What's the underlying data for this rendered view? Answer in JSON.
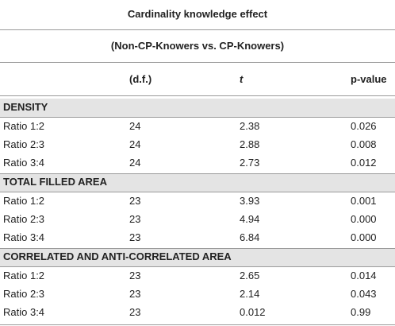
{
  "title": "Cardinality knowledge effect",
  "subtitle": "(Non-CP-Knowers vs. CP-Knowers)",
  "table": {
    "columns": [
      "(d.f.)",
      "t",
      "p-value"
    ],
    "sections": [
      {
        "name": "DENSITY",
        "rows": [
          [
            "Ratio 1:2",
            "24",
            "2.38",
            "0.026"
          ],
          [
            "Ratio 2:3",
            "24",
            "2.88",
            "0.008"
          ],
          [
            "Ratio 3:4",
            "24",
            "2.73",
            "0.012"
          ]
        ]
      },
      {
        "name": "TOTAL FILLED AREA",
        "rows": [
          [
            "Ratio 1:2",
            "23",
            "3.93",
            "0.001"
          ],
          [
            "Ratio 2:3",
            "23",
            "4.94",
            "0.000"
          ],
          [
            "Ratio 3:4",
            "23",
            "6.84",
            "0.000"
          ]
        ]
      },
      {
        "name": "CORRELATED AND ANTI-CORRELATED AREA",
        "rows": [
          [
            "Ratio 1:2",
            "23",
            "2.65",
            "0.014"
          ],
          [
            "Ratio 2:3",
            "23",
            "2.14",
            "0.043"
          ],
          [
            "Ratio 3:4",
            "23",
            "0.012",
            "0.99"
          ]
        ]
      }
    ]
  }
}
